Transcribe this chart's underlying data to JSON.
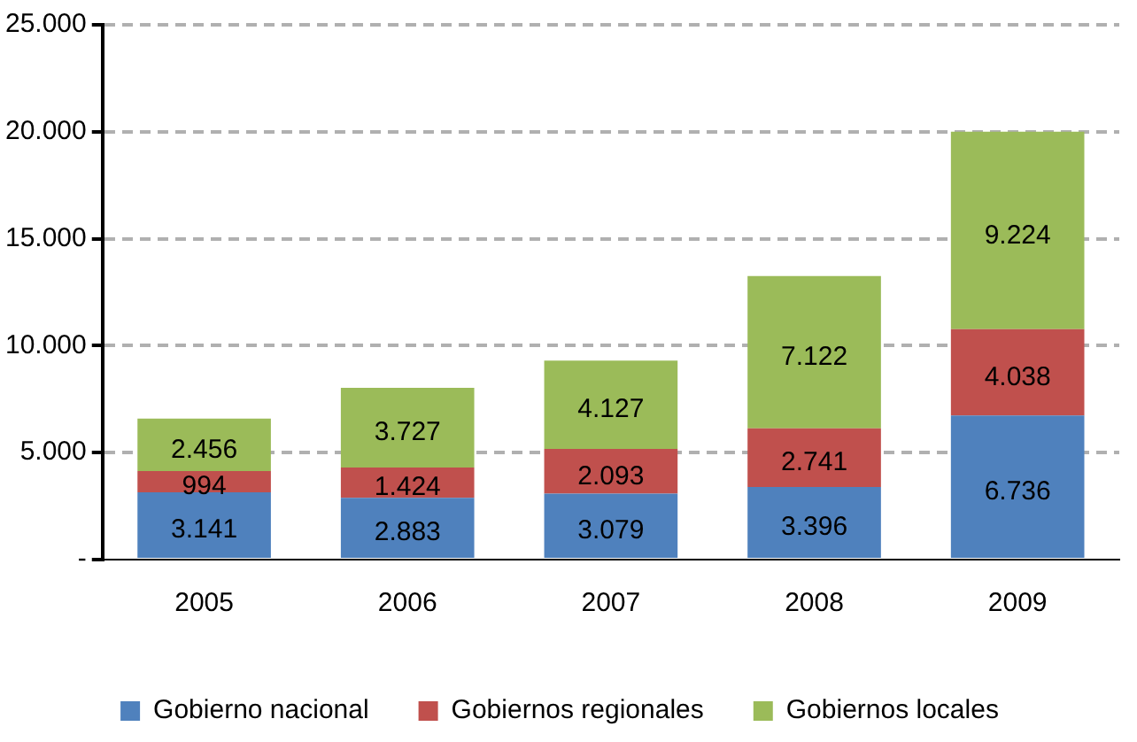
{
  "chart_data": {
    "type": "bar",
    "stacked": true,
    "categories": [
      "2005",
      "2006",
      "2007",
      "2008",
      "2009"
    ],
    "series": [
      {
        "name": "Gobierno nacional",
        "color": "#4f81bd",
        "values": [
          3141,
          2883,
          3079,
          3396,
          6736
        ],
        "value_labels": [
          "3.141",
          "2.883",
          "3.079",
          "3.396",
          "6.736"
        ]
      },
      {
        "name": "Gobiernos regionales",
        "color": "#c0504d",
        "values": [
          994,
          1424,
          2093,
          2741,
          4038
        ],
        "value_labels": [
          "994",
          "1.424",
          "2.093",
          "2.741",
          "4.038"
        ]
      },
      {
        "name": "Gobiernos locales",
        "color": "#9bbb59",
        "values": [
          2456,
          3727,
          4127,
          7122,
          9224
        ],
        "value_labels": [
          "2.456",
          "3.727",
          "4.127",
          "7.122",
          "9.224"
        ]
      }
    ],
    "ylim": [
      0,
      25000
    ],
    "yticks": [
      {
        "value": 0,
        "label": "-"
      },
      {
        "value": 5000,
        "label": "5.000"
      },
      {
        "value": 10000,
        "label": "10.000"
      },
      {
        "value": 15000,
        "label": "15.000"
      },
      {
        "value": 20000,
        "label": "20.000"
      },
      {
        "value": 25000,
        "label": "25.000"
      }
    ],
    "grid": "y",
    "legend": "bottom"
  }
}
